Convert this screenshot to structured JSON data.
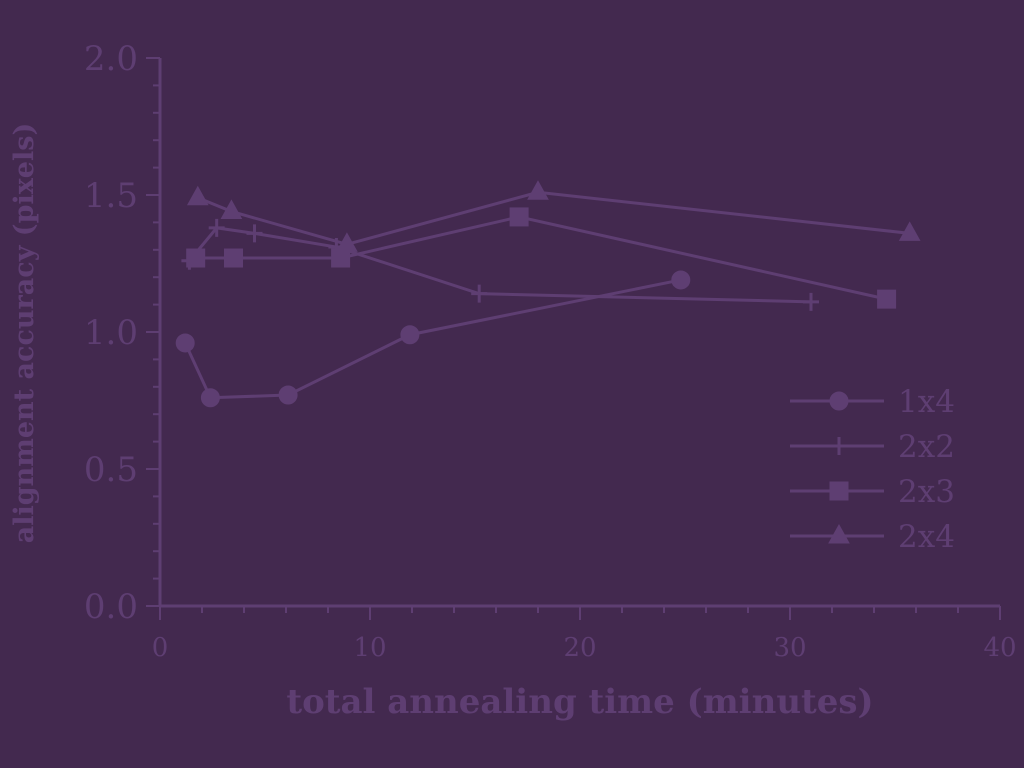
{
  "chart_data": {
    "type": "line",
    "xlabel": "total annealing time (minutes)",
    "ylabel": "alignment accuracy (pixels)",
    "xlim": [
      0,
      40
    ],
    "ylim": [
      0.0,
      2.0
    ],
    "x_ticks": [
      "0",
      "10",
      "20",
      "30",
      "40"
    ],
    "y_ticks": [
      "0.0",
      "0.5",
      "1.0",
      "1.5",
      "2.0"
    ],
    "legend_position": "right",
    "grid": false,
    "series": [
      {
        "name": "1x4",
        "marker": "circle",
        "x": [
          1.2,
          2.4,
          6.1,
          11.9,
          24.8
        ],
        "y": [
          0.96,
          0.76,
          0.77,
          0.99,
          1.19
        ]
      },
      {
        "name": "2x2",
        "marker": "plus",
        "x": [
          1.4,
          2.7,
          4.5,
          8.4,
          15.2,
          31.0
        ],
        "y": [
          1.26,
          1.38,
          1.36,
          1.31,
          1.14,
          1.11
        ]
      },
      {
        "name": "2x3",
        "marker": "square",
        "x": [
          1.7,
          3.5,
          8.6,
          17.1,
          34.6
        ],
        "y": [
          1.27,
          1.27,
          1.27,
          1.42,
          1.12
        ]
      },
      {
        "name": "2x4",
        "marker": "triangle",
        "x": [
          1.8,
          3.4,
          8.9,
          18.0,
          35.7
        ],
        "y": [
          1.49,
          1.44,
          1.32,
          1.51,
          1.36
        ]
      }
    ]
  }
}
